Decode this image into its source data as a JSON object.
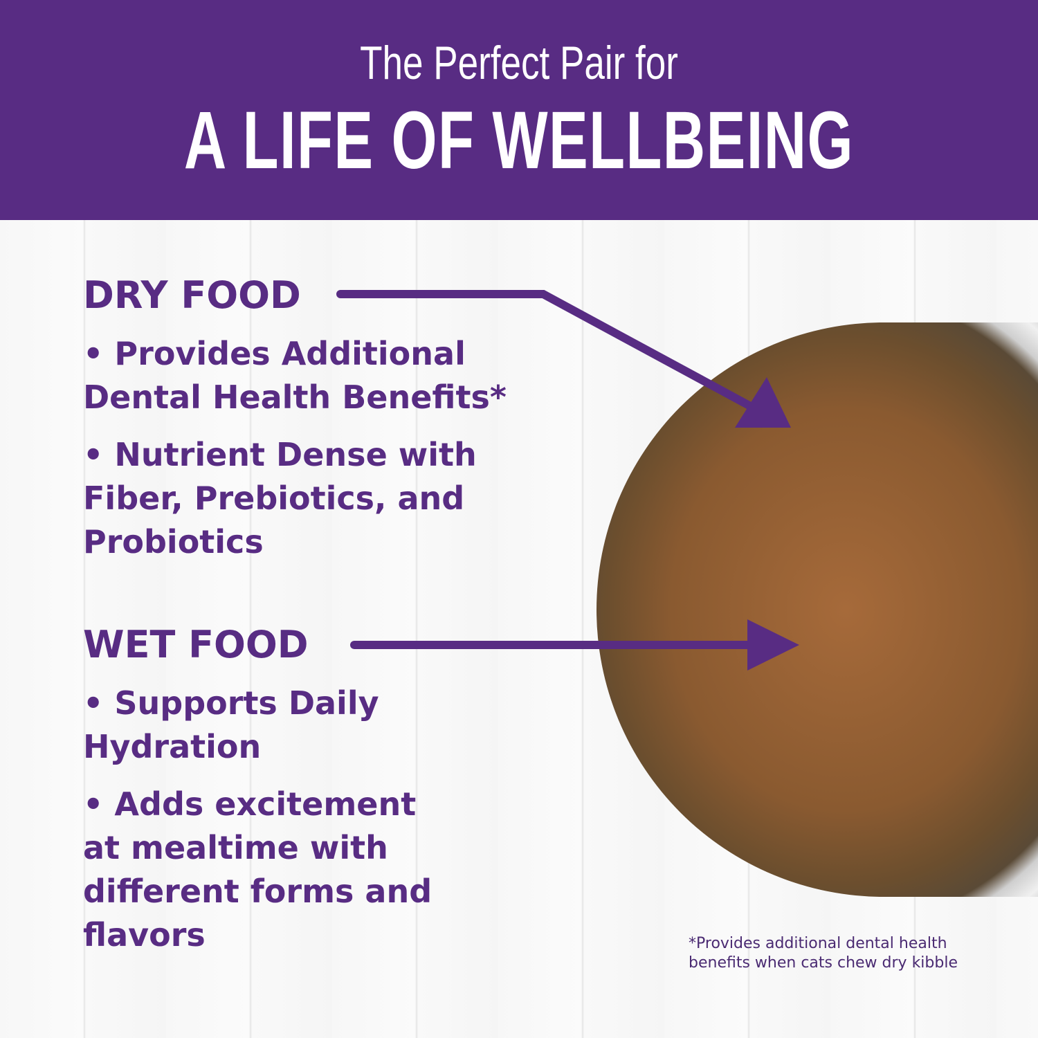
{
  "header": {
    "line1": "The Perfect Pair for",
    "line2": "A LIFE OF WELLBEING"
  },
  "dry": {
    "title": "DRY FOOD",
    "items": [
      "• Provides Additional Dental Health Benefits*",
      "• Nutrient Dense with Fiber, Prebiotics, and Probiotics"
    ]
  },
  "wet": {
    "title": "WET FOOD",
    "items": [
      "• Supports Daily Hydration",
      "• Adds excitement at mealtime with different forms and flavors"
    ]
  },
  "footnote": "*Provides additional dental health benefits when cats chew dry kibble",
  "colors": {
    "brand": "#582c83"
  }
}
